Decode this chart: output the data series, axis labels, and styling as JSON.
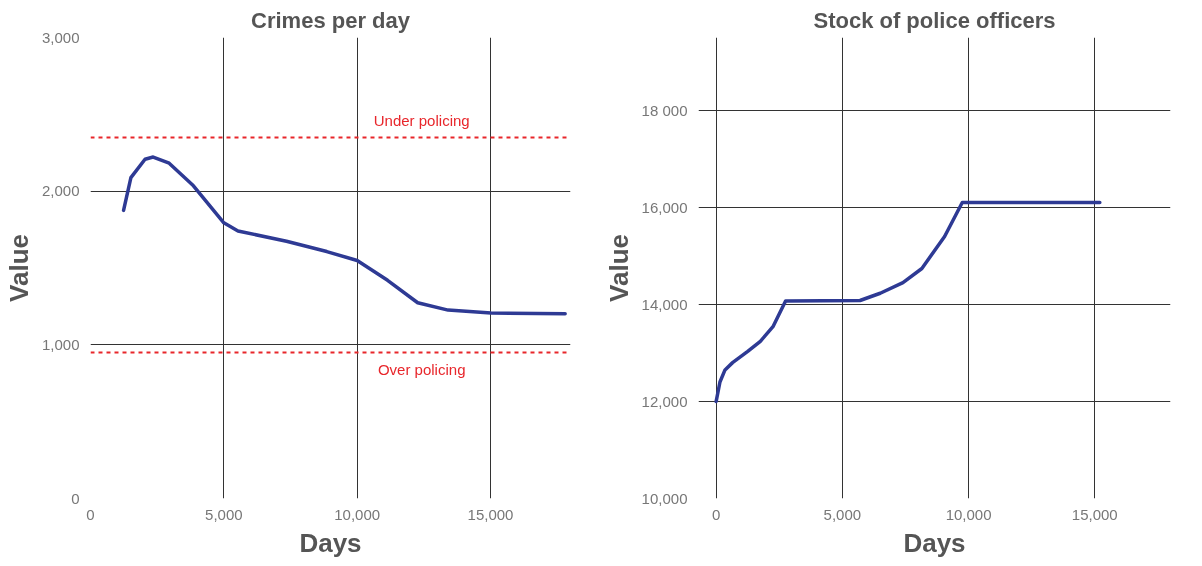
{
  "chart_data": [
    {
      "type": "line",
      "title": "Crimes per day",
      "xlabel": "Days",
      "ylabel": "Value",
      "xlim": [
        0,
        18000
      ],
      "ylim": [
        0,
        3000
      ],
      "xticks": [
        0,
        {
          "value": 5000,
          "label": "5,000"
        },
        {
          "value": 10000,
          "label": "10,000"
        },
        {
          "value": 15000,
          "label": "15,000"
        }
      ],
      "yticks": [
        0,
        {
          "value": 1000,
          "label": "1,000"
        },
        {
          "value": 2000,
          "label": "2,000"
        },
        {
          "value": 3000,
          "label": "3,000"
        }
      ],
      "grid": true,
      "marker": "none",
      "line_style": "solid",
      "series": [
        {
          "color": "#2e3a94",
          "x": [
            1240,
            1515,
            2045,
            2350,
            2950,
            3860,
            5000,
            5530,
            7350,
            8860,
            10000,
            11140,
            12270,
            13410,
            15020,
            17800
          ],
          "values": [
            1875,
            2088,
            2208,
            2222,
            2182,
            2035,
            1794,
            1741,
            1674,
            1607,
            1549,
            1420,
            1274,
            1226,
            1207,
            1202
          ]
        }
      ],
      "ref_lines": [
        {
          "axis": "y",
          "value": 2350,
          "label": "Under policing",
          "color": "#e8262b",
          "line_style": "dashed"
        },
        {
          "axis": "y",
          "value": 950,
          "label": "Over policing",
          "color": "#e8262b",
          "line_style": "dashed"
        }
      ]
    },
    {
      "type": "line",
      "title": "Stock of police officers",
      "xlabel": "Days",
      "ylabel": "Value",
      "xlim": [
        -700,
        18000
      ],
      "ylim": [
        10000,
        19500
      ],
      "xticks": [
        0,
        {
          "value": 5000,
          "label": "5,000"
        },
        {
          "value": 10000,
          "label": "10,000"
        },
        {
          "value": 15000,
          "label": "15,000"
        }
      ],
      "yticks": [
        {
          "value": 10000,
          "label": "10,000"
        },
        {
          "value": 12000,
          "label": "12,000"
        },
        {
          "value": 14000,
          "label": "14,000"
        },
        {
          "value": 16000,
          "label": "16,000"
        },
        {
          "value": 18000,
          "label": "18 000"
        }
      ],
      "grid": true,
      "marker": "none",
      "line_style": "solid",
      "series": [
        {
          "color": "#2e3a94",
          "x": [
            0,
            150,
            350,
            650,
            1250,
            1750,
            2250,
            2750,
            5700,
            6500,
            7400,
            8150,
            9050,
            9750,
            15200
          ],
          "values": [
            12000,
            12400,
            12650,
            12800,
            13030,
            13240,
            13540,
            14070,
            14080,
            14230,
            14450,
            14740,
            15400,
            16100,
            16100
          ]
        }
      ]
    }
  ]
}
